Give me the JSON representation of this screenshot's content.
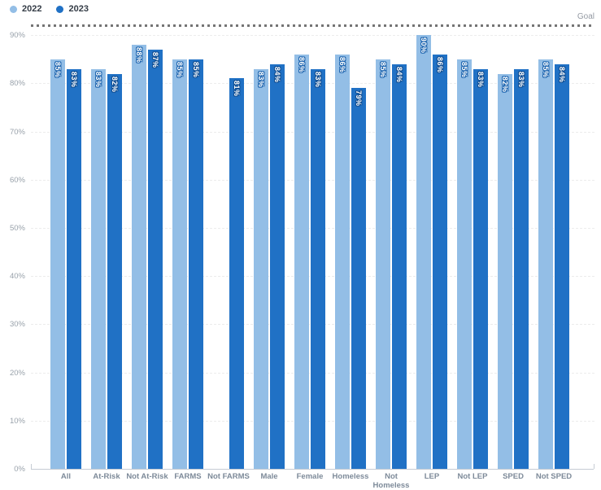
{
  "legend": {
    "items": [
      {
        "label": "2022"
      },
      {
        "label": "2023"
      }
    ]
  },
  "chart_data": {
    "type": "bar",
    "title": "",
    "xlabel": "",
    "ylabel": "",
    "ylim": [
      0,
      100
    ],
    "yticks": [
      "0%",
      "10%",
      "20%",
      "30%",
      "40%",
      "50%",
      "60%",
      "70%",
      "80%",
      "90%"
    ],
    "grid": true,
    "legend_position": "top-left",
    "value_label_format": "percent",
    "categories": [
      "All",
      "At-Risk",
      "Not At-Risk",
      "FARMS",
      "Not FARMS",
      "Male",
      "Female",
      "Homeless",
      "Not Homeless",
      "LEP",
      "Not LEP",
      "SPED",
      "Not SPED"
    ],
    "series": [
      {
        "name": "2022",
        "color": "#93BEE6",
        "label_outline": "#1f66b0",
        "values": [
          85,
          83,
          88,
          85,
          null,
          83,
          86,
          86,
          85,
          90,
          85,
          82,
          85
        ]
      },
      {
        "name": "2023",
        "color": "#2071C5",
        "label_outline": "#114e92",
        "values": [
          83,
          82,
          87,
          85,
          81,
          84,
          83,
          79,
          84,
          86,
          83,
          83,
          84
        ]
      }
    ],
    "goal_line": {
      "label": "Goal",
      "value": 92,
      "color": "#757575"
    }
  }
}
